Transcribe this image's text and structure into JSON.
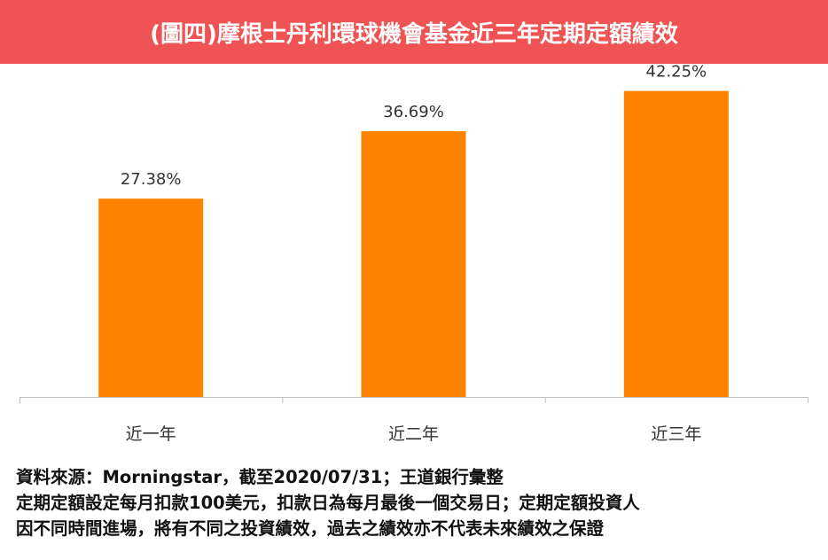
{
  "title": "(圖四)摩根士丹利環球機會基金近三年定期定額績效",
  "colors": {
    "title_bar": "#f05353",
    "bar": "#ff8300",
    "axis": "#bfbfbf",
    "label_text": "#333333",
    "footnote_text": "#111111"
  },
  "chart_data": {
    "type": "bar",
    "categories": [
      "近一年",
      "近二年",
      "近三年"
    ],
    "values": [
      27.38,
      36.69,
      42.25
    ],
    "value_labels": [
      "27.38%",
      "36.69%",
      "42.25%"
    ],
    "unit": "%",
    "title": "(圖四)摩根士丹利環球機會基金近三年定期定額績效",
    "xlabel": "",
    "ylabel": "",
    "ylim": [
      0,
      46
    ],
    "grid": false,
    "legend": "none"
  },
  "footnote": {
    "lines": [
      "資料來源：Morningstar，截至2020/07/31；王道銀行彙整",
      "定期定額設定每月扣款100美元，扣款日為每月最後一個交易日；定期定額投資人",
      "因不同時間進場，將有不同之投資績效，過去之績效亦不代表未來績效之保證"
    ]
  }
}
